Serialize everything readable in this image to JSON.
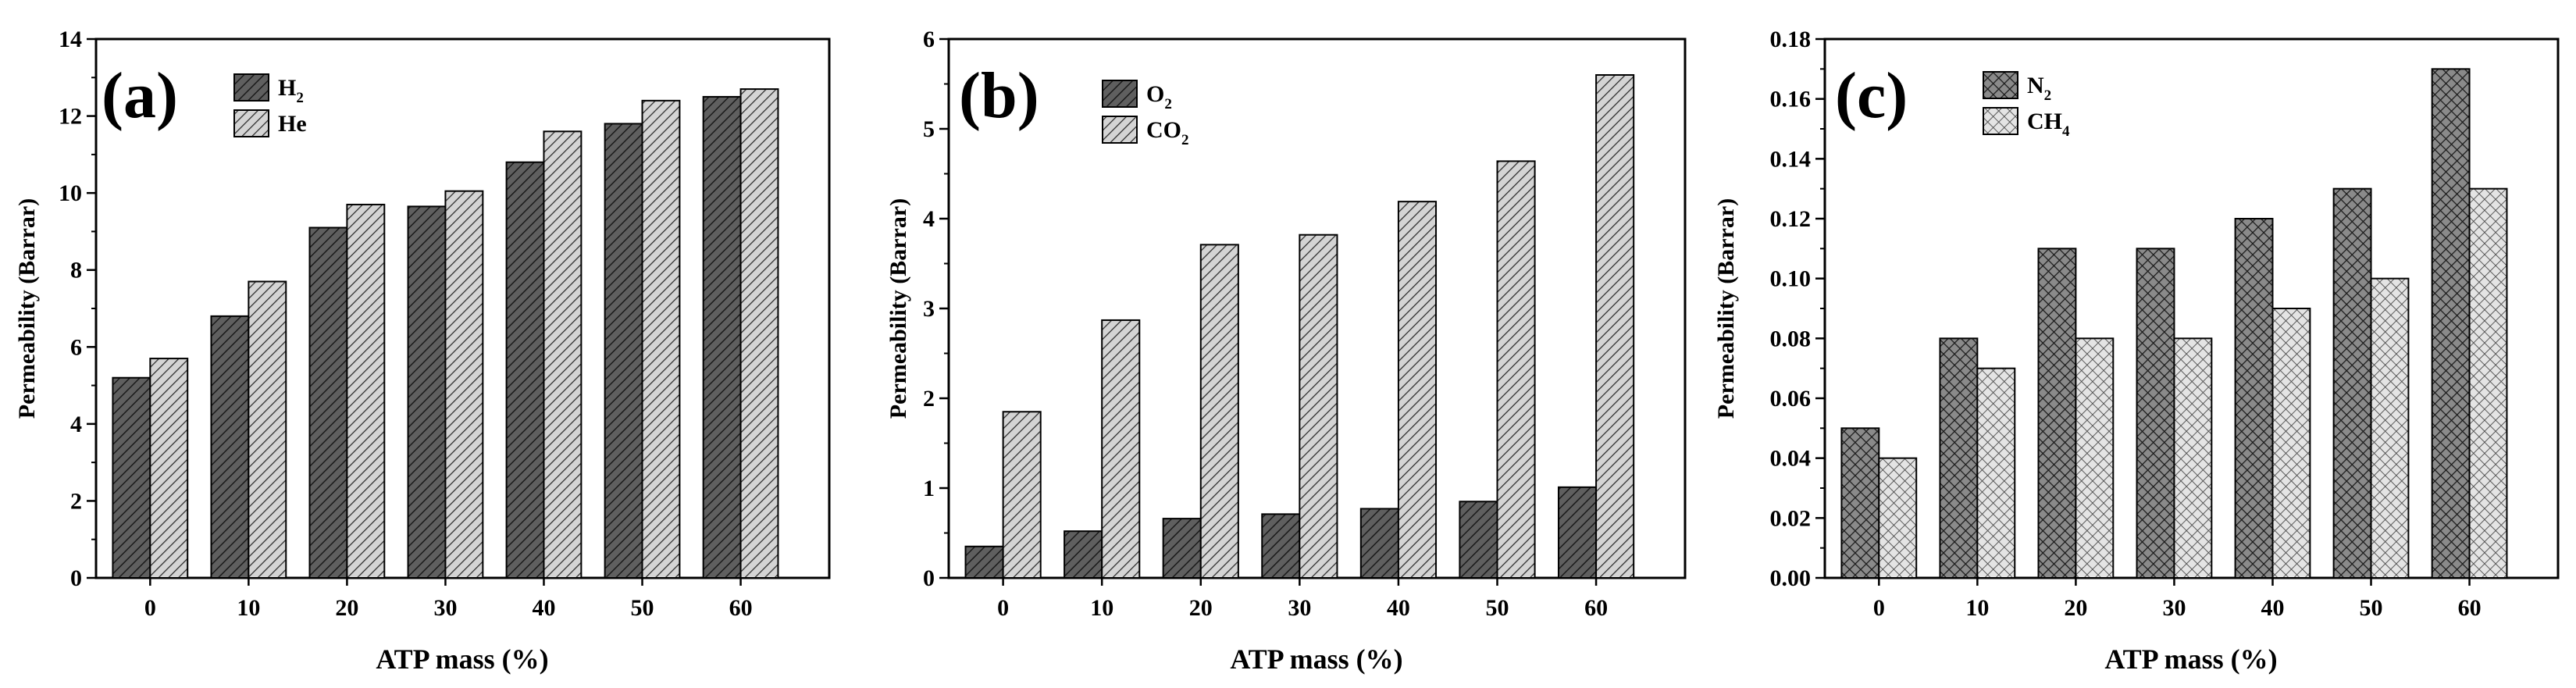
{
  "chart_data": [
    {
      "type": "bar",
      "panel_label": "(a)",
      "categories": [
        "0",
        "10",
        "20",
        "30",
        "40",
        "50",
        "60"
      ],
      "xlabel": "ATP mass (%)",
      "ylabel": "Permeability (Barrar)",
      "ylim": [
        0,
        14
      ],
      "yticks": [
        "0",
        "2",
        "4",
        "6",
        "8",
        "10",
        "12",
        "14"
      ],
      "legend_position": "top-left",
      "series": [
        {
          "name": "H2",
          "label": "H",
          "sub": "2",
          "fill": "#5f5f5f",
          "pattern": "diag-dark",
          "values": [
            5.2,
            6.8,
            9.1,
            9.65,
            10.8,
            11.8,
            12.5
          ]
        },
        {
          "name": "He",
          "label": "He",
          "sub": "",
          "fill": "#cfcfcf",
          "pattern": "diag-light",
          "values": [
            5.7,
            7.7,
            9.7,
            10.05,
            11.6,
            12.4,
            12.7
          ]
        }
      ]
    },
    {
      "type": "bar",
      "panel_label": "(b)",
      "categories": [
        "0",
        "10",
        "20",
        "30",
        "40",
        "50",
        "60"
      ],
      "xlabel": "ATP mass (%)",
      "ylabel": "Permeability (Barrar)",
      "ylim": [
        0,
        6
      ],
      "yticks": [
        "0",
        "1",
        "2",
        "3",
        "4",
        "5",
        "6"
      ],
      "legend_position": "top-left",
      "series": [
        {
          "name": "O2",
          "label": "O",
          "sub": "2",
          "fill": "#5f5f5f",
          "pattern": "diag-dark",
          "values": [
            0.35,
            0.52,
            0.66,
            0.71,
            0.77,
            0.85,
            1.01
          ]
        },
        {
          "name": "CO2",
          "label": "CO",
          "sub": "2",
          "fill": "#cfcfcf",
          "pattern": "diag-light",
          "values": [
            1.85,
            2.87,
            3.71,
            3.82,
            4.19,
            4.64,
            5.6
          ]
        }
      ]
    },
    {
      "type": "bar",
      "panel_label": "(c)",
      "categories": [
        "0",
        "10",
        "20",
        "30",
        "40",
        "50",
        "60"
      ],
      "xlabel": "ATP mass (%)",
      "ylabel": "Permeability (Barrar)",
      "ylim": [
        0,
        0.18
      ],
      "yticks": [
        "0.00",
        "0.02",
        "0.04",
        "0.06",
        "0.08",
        "0.10",
        "0.12",
        "0.14",
        "0.16",
        "0.18"
      ],
      "legend_position": "top-left",
      "series": [
        {
          "name": "N2",
          "label": "N",
          "sub": "2",
          "fill": "#7a7a7a",
          "pattern": "cross-dark",
          "values": [
            0.05,
            0.08,
            0.11,
            0.11,
            0.12,
            0.13,
            0.17
          ]
        },
        {
          "name": "CH4",
          "label": "CH",
          "sub": "4",
          "fill": "#d9d9d9",
          "pattern": "cross-light",
          "values": [
            0.04,
            0.07,
            0.08,
            0.08,
            0.09,
            0.1,
            0.13
          ]
        }
      ]
    }
  ]
}
